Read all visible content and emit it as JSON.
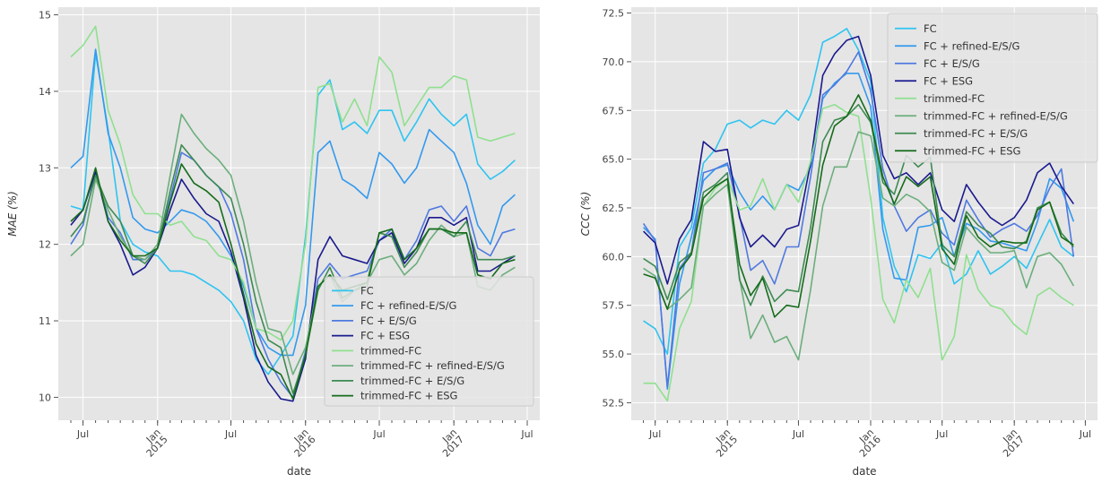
{
  "chart_data": [
    {
      "type": "line",
      "xlabel": "date",
      "ylabel": "MAE (%)",
      "ylim": [
        9.7,
        15.1
      ],
      "yticks": [
        10,
        11,
        12,
        13,
        14,
        15
      ],
      "xlim": [
        "2014-05-01",
        "2017-08-01"
      ],
      "xticks": [
        {
          "date": "2014-07-01",
          "label": "Jul",
          "rotated": false
        },
        {
          "date": "2015-01-01",
          "label": "Jan\n2015",
          "rotated": true
        },
        {
          "date": "2015-07-01",
          "label": "Jul",
          "rotated": false
        },
        {
          "date": "2016-01-01",
          "label": "Jan\n2016",
          "rotated": true
        },
        {
          "date": "2016-07-01",
          "label": "Jul",
          "rotated": false
        },
        {
          "date": "2017-01-01",
          "label": "Jan\n2017",
          "rotated": true
        },
        {
          "date": "2017-07-01",
          "label": "Jul",
          "rotated": false
        }
      ],
      "grid": true,
      "legend_position": "lower-right",
      "x": [
        "2014-06-01",
        "2014-07-01",
        "2014-08-01",
        "2014-09-01",
        "2014-10-01",
        "2014-11-01",
        "2014-12-01",
        "2015-01-01",
        "2015-02-01",
        "2015-03-01",
        "2015-04-01",
        "2015-05-01",
        "2015-06-01",
        "2015-07-01",
        "2015-08-01",
        "2015-09-01",
        "2015-10-01",
        "2015-11-01",
        "2015-12-01",
        "2016-01-01",
        "2016-02-01",
        "2016-03-01",
        "2016-04-01",
        "2016-05-01",
        "2016-06-01",
        "2016-07-01",
        "2016-08-01",
        "2016-09-01",
        "2016-10-01",
        "2016-11-01",
        "2016-12-01",
        "2017-01-01",
        "2017-02-01",
        "2017-03-01",
        "2017-04-01",
        "2017-05-01",
        "2017-06-01"
      ],
      "series": [
        {
          "name": "FC",
          "color": "#2ec4f0",
          "values": [
            12.5,
            12.45,
            14.5,
            13.5,
            12.3,
            12.0,
            11.9,
            11.85,
            11.65,
            11.65,
            11.6,
            11.5,
            11.4,
            11.25,
            11.0,
            10.5,
            10.3,
            10.55,
            10.8,
            12.1,
            13.95,
            14.15,
            13.5,
            13.6,
            13.45,
            13.75,
            13.75,
            13.35,
            13.6,
            13.9,
            13.7,
            13.55,
            13.7,
            13.05,
            12.85,
            12.95,
            13.1
          ]
        },
        {
          "name": "FC + refined-E/S/G",
          "color": "#3399ee",
          "values": [
            13.0,
            13.15,
            14.55,
            13.45,
            13.0,
            12.35,
            12.2,
            12.15,
            12.3,
            12.45,
            12.4,
            12.3,
            12.1,
            11.85,
            11.45,
            10.9,
            10.65,
            10.55,
            10.55,
            11.2,
            13.2,
            13.35,
            12.85,
            12.75,
            12.6,
            13.2,
            13.05,
            12.8,
            13.0,
            13.5,
            13.35,
            13.2,
            12.8,
            12.25,
            12.0,
            12.5,
            12.65
          ]
        },
        {
          "name": "FC + E/S/G",
          "color": "#4f79e0",
          "values": [
            12.0,
            12.25,
            12.95,
            12.35,
            12.15,
            11.8,
            11.8,
            11.95,
            12.6,
            13.2,
            13.1,
            12.9,
            12.75,
            12.4,
            11.8,
            10.9,
            10.5,
            10.2,
            10.0,
            10.6,
            11.55,
            11.75,
            11.55,
            11.6,
            11.65,
            12.05,
            12.2,
            11.8,
            12.05,
            12.45,
            12.5,
            12.3,
            12.5,
            11.95,
            11.85,
            12.15,
            12.2
          ]
        },
        {
          "name": "FC + ESG",
          "color": "#1a1a8e",
          "values": [
            12.25,
            12.45,
            12.95,
            12.3,
            12.0,
            11.6,
            11.7,
            11.95,
            12.45,
            12.85,
            12.6,
            12.4,
            12.3,
            11.9,
            11.3,
            10.55,
            10.2,
            9.98,
            9.95,
            10.5,
            11.8,
            12.1,
            11.85,
            11.8,
            11.75,
            12.05,
            12.15,
            11.75,
            11.95,
            12.35,
            12.35,
            12.25,
            12.35,
            11.65,
            11.65,
            11.75,
            11.85
          ]
        },
        {
          "name": "trimmed-FC",
          "color": "#8fe08f",
          "values": [
            14.45,
            14.6,
            14.85,
            13.75,
            13.3,
            12.65,
            12.4,
            12.4,
            12.25,
            12.3,
            12.1,
            12.05,
            11.85,
            11.8,
            11.5,
            10.9,
            10.85,
            10.75,
            11.0,
            12.0,
            14.05,
            14.1,
            13.6,
            13.9,
            13.55,
            14.45,
            14.25,
            13.55,
            13.8,
            14.05,
            14.05,
            14.2,
            14.15,
            13.4,
            13.35,
            13.4,
            13.45
          ]
        },
        {
          "name": "trimmed-FC + refined-E/S/G",
          "color": "#6cae7c",
          "values": [
            11.85,
            12.0,
            12.85,
            12.45,
            12.1,
            11.85,
            11.8,
            12.0,
            12.9,
            13.7,
            13.45,
            13.25,
            13.1,
            12.9,
            12.3,
            11.5,
            10.9,
            10.85,
            10.3,
            10.65,
            11.45,
            11.6,
            11.25,
            11.4,
            11.5,
            11.8,
            11.85,
            11.6,
            11.75,
            12.05,
            12.25,
            12.1,
            12.15,
            11.45,
            11.4,
            11.6,
            11.7
          ]
        },
        {
          "name": "trimmed-FC + E/S/G",
          "color": "#3d8a52",
          "values": [
            12.1,
            12.3,
            12.9,
            12.5,
            12.3,
            11.85,
            11.75,
            11.95,
            12.7,
            13.3,
            13.1,
            12.9,
            12.75,
            12.6,
            12.0,
            11.25,
            10.75,
            10.65,
            10.05,
            10.55,
            11.4,
            11.7,
            11.3,
            11.4,
            11.45,
            12.15,
            12.1,
            11.7,
            11.9,
            12.2,
            12.2,
            12.1,
            12.3,
            11.8,
            11.8,
            11.8,
            11.85
          ]
        },
        {
          "name": "trimmed-FC + ESG",
          "color": "#156b1a",
          "values": [
            12.3,
            12.45,
            13.0,
            12.3,
            12.05,
            11.85,
            11.85,
            11.95,
            12.55,
            13.05,
            12.8,
            12.7,
            12.55,
            12.0,
            11.35,
            10.7,
            10.4,
            10.3,
            9.98,
            10.55,
            11.45,
            11.6,
            11.4,
            11.45,
            11.5,
            12.15,
            12.2,
            11.8,
            11.95,
            12.2,
            12.2,
            12.15,
            12.15,
            11.6,
            11.55,
            11.75,
            11.8
          ]
        }
      ]
    },
    {
      "type": "line",
      "xlabel": "date",
      "ylabel": "CCC (%)",
      "ylim": [
        51.6,
        72.8
      ],
      "yticks": [
        52.5,
        55.0,
        57.5,
        60.0,
        62.5,
        65.0,
        67.5,
        70.0,
        72.5
      ],
      "xlim": [
        "2014-05-01",
        "2017-08-01"
      ],
      "xticks": [
        {
          "date": "2014-07-01",
          "label": "Jul",
          "rotated": false
        },
        {
          "date": "2015-01-01",
          "label": "Jan\n2015",
          "rotated": true
        },
        {
          "date": "2015-07-01",
          "label": "Jul",
          "rotated": false
        },
        {
          "date": "2016-01-01",
          "label": "Jan\n2016",
          "rotated": true
        },
        {
          "date": "2016-07-01",
          "label": "Jul",
          "rotated": false
        },
        {
          "date": "2017-01-01",
          "label": "Jan\n2017",
          "rotated": true
        },
        {
          "date": "2017-07-01",
          "label": "Jul",
          "rotated": false
        }
      ],
      "grid": true,
      "legend_position": "upper-right",
      "x": [
        "2014-06-01",
        "2014-07-01",
        "2014-08-01",
        "2014-09-01",
        "2014-10-01",
        "2014-11-01",
        "2014-12-01",
        "2015-01-01",
        "2015-02-01",
        "2015-03-01",
        "2015-04-01",
        "2015-05-01",
        "2015-06-01",
        "2015-07-01",
        "2015-08-01",
        "2015-09-01",
        "2015-10-01",
        "2015-11-01",
        "2015-12-01",
        "2016-01-01",
        "2016-02-01",
        "2016-03-01",
        "2016-04-01",
        "2016-05-01",
        "2016-06-01",
        "2016-07-01",
        "2016-08-01",
        "2016-09-01",
        "2016-10-01",
        "2016-11-01",
        "2016-12-01",
        "2017-01-01",
        "2017-02-01",
        "2017-03-01",
        "2017-04-01",
        "2017-05-01",
        "2017-06-01"
      ],
      "series": [
        {
          "name": "FC",
          "color": "#2ec4f0",
          "values": [
            56.7,
            56.3,
            55.0,
            60.5,
            61.5,
            64.8,
            65.5,
            66.8,
            67.0,
            66.6,
            67.0,
            66.8,
            67.5,
            67.0,
            68.3,
            71.0,
            71.3,
            71.7,
            70.6,
            69.0,
            62.0,
            59.5,
            58.2,
            60.1,
            59.9,
            60.7,
            58.6,
            59.1,
            60.3,
            59.1,
            59.5,
            60.0,
            59.4,
            60.6,
            61.9,
            60.5,
            60.0
          ]
        },
        {
          "name": "FC + refined-E/S/G",
          "color": "#3399ee",
          "values": [
            61.5,
            60.9,
            53.2,
            58.6,
            61.0,
            63.9,
            64.5,
            64.7,
            63.3,
            62.4,
            63.1,
            62.4,
            63.7,
            63.4,
            64.6,
            68.1,
            68.9,
            69.4,
            69.4,
            67.7,
            61.4,
            58.9,
            58.8,
            61.5,
            61.6,
            62.0,
            60.0,
            61.7,
            61.4,
            60.8,
            60.7,
            60.5,
            60.3,
            61.8,
            64.0,
            63.5,
            61.8
          ]
        },
        {
          "name": "FC + E/S/G",
          "color": "#4f79e0",
          "values": [
            61.7,
            60.8,
            53.3,
            59.4,
            60.2,
            64.3,
            64.5,
            64.8,
            62.1,
            59.3,
            59.8,
            58.6,
            60.5,
            60.5,
            64.1,
            68.3,
            68.8,
            69.5,
            70.5,
            68.5,
            64.5,
            62.6,
            61.3,
            62.0,
            62.4,
            61.2,
            60.6,
            62.9,
            61.9,
            61.0,
            61.4,
            61.7,
            61.3,
            62.1,
            63.5,
            64.5,
            60.0
          ]
        },
        {
          "name": "FC + ESG",
          "color": "#1a1a8e",
          "values": [
            61.3,
            60.7,
            58.6,
            60.9,
            61.9,
            65.9,
            65.4,
            65.5,
            62.0,
            60.5,
            61.1,
            60.5,
            61.4,
            61.6,
            64.8,
            69.3,
            70.4,
            71.1,
            71.3,
            69.3,
            65.2,
            64.0,
            64.3,
            63.7,
            64.3,
            62.4,
            61.8,
            63.7,
            62.8,
            62.0,
            61.6,
            62.0,
            62.9,
            64.3,
            64.8,
            63.6,
            62.7
          ]
        },
        {
          "name": "trimmed-FC",
          "color": "#8fe08f",
          "values": [
            53.5,
            53.5,
            52.6,
            56.3,
            57.7,
            62.6,
            63.5,
            64.0,
            62.4,
            62.6,
            64.0,
            62.4,
            63.7,
            62.8,
            64.9,
            67.6,
            67.8,
            67.4,
            67.2,
            63.0,
            57.8,
            56.6,
            58.8,
            57.9,
            59.4,
            54.7,
            55.9,
            60.1,
            58.3,
            57.5,
            57.3,
            56.5,
            56.0,
            58.0,
            58.4,
            57.9,
            57.5
          ]
        },
        {
          "name": "trimmed-FC + refined-E/S/G",
          "color": "#6cae7c",
          "values": [
            59.4,
            59.0,
            57.3,
            57.8,
            58.4,
            62.6,
            63.2,
            63.7,
            58.9,
            55.8,
            57.0,
            55.6,
            55.9,
            54.7,
            58.3,
            62.6,
            64.6,
            64.6,
            66.4,
            66.2,
            63.0,
            62.6,
            63.2,
            62.9,
            62.3,
            59.7,
            59.3,
            61.5,
            60.8,
            60.2,
            60.2,
            60.3,
            58.4,
            60.0,
            60.2,
            59.6,
            58.5
          ]
        },
        {
          "name": "trimmed-FC + E/S/G",
          "color": "#3d8a52",
          "values": [
            59.9,
            59.5,
            57.8,
            59.7,
            60.2,
            63.3,
            63.7,
            64.3,
            58.8,
            57.5,
            59.0,
            57.7,
            58.3,
            58.2,
            61.5,
            65.9,
            67.0,
            67.2,
            67.8,
            66.9,
            63.8,
            63.2,
            65.2,
            64.6,
            65.1,
            60.6,
            60.0,
            62.3,
            61.6,
            61.2,
            60.5,
            60.4,
            60.8,
            62.5,
            62.8,
            61.2,
            60.5
          ]
        },
        {
          "name": "trimmed-FC + ESG",
          "color": "#156b1a",
          "values": [
            59.1,
            58.9,
            57.3,
            59.3,
            60.1,
            63.0,
            63.6,
            64.0,
            59.6,
            58.0,
            58.9,
            56.9,
            57.5,
            57.4,
            60.8,
            64.7,
            66.7,
            67.2,
            68.3,
            67.0,
            64.1,
            62.7,
            64.1,
            63.6,
            64.1,
            60.4,
            59.6,
            62.1,
            61.0,
            60.5,
            60.8,
            60.7,
            60.7,
            62.4,
            62.8,
            61.0,
            60.6
          ]
        }
      ]
    }
  ]
}
